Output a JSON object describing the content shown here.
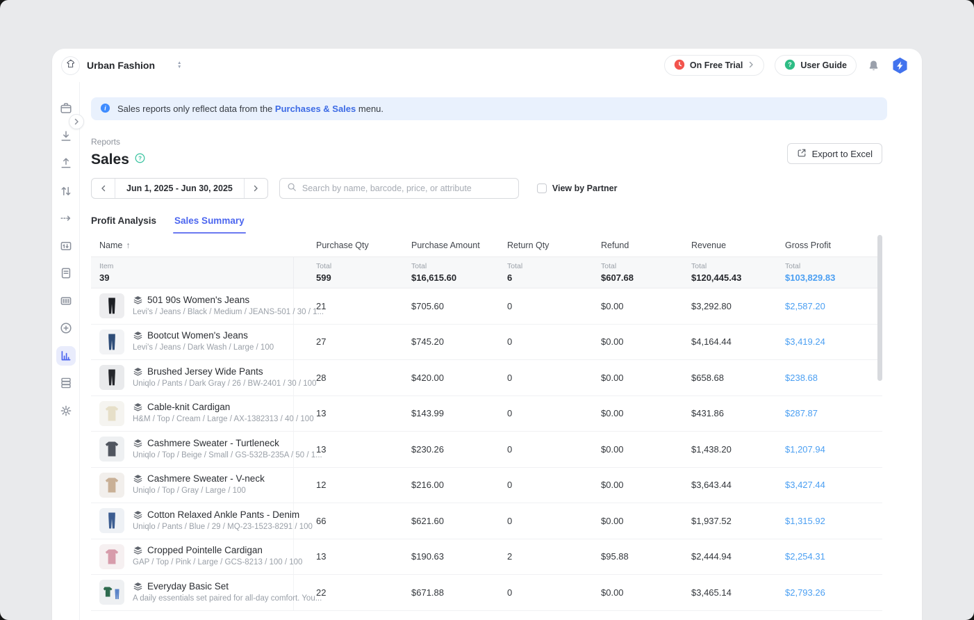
{
  "app": {
    "workspace": "Urban Fashion",
    "trial_label": "On Free Trial",
    "user_guide_label": "User Guide"
  },
  "sidebar": {
    "items": [
      {
        "icon": "box-icon"
      },
      {
        "icon": "stock-in-icon"
      },
      {
        "icon": "stock-out-icon"
      },
      {
        "icon": "adjust-icon"
      },
      {
        "icon": "move-icon"
      },
      {
        "icon": "count-icon"
      },
      {
        "icon": "ledger-icon"
      },
      {
        "icon": "barcode-icon"
      },
      {
        "icon": "add-circle-icon"
      },
      {
        "icon": "analytics-icon",
        "active": true
      },
      {
        "icon": "database-icon"
      },
      {
        "icon": "settings-gear-icon"
      }
    ]
  },
  "banner": {
    "text": "Sales reports only reflect data from the",
    "link": "Purchases & Sales",
    "suffix": "menu."
  },
  "page": {
    "breadcrumb": "Reports",
    "title": "Sales",
    "export_button": "Export to Excel"
  },
  "filters": {
    "date_range": "Jun 1, 2025 - Jun 30, 2025",
    "search_placeholder": "Search by name, barcode, price, or attribute",
    "view_by_partner": "View by Partner"
  },
  "tabs": [
    {
      "label": "Profit Analysis",
      "active": false
    },
    {
      "label": "Sales Summary",
      "active": true
    }
  ],
  "table": {
    "columns": [
      "Name",
      "Purchase Qty",
      "Purchase Amount",
      "Return Qty",
      "Refund",
      "Revenue",
      "Gross Profit"
    ],
    "summary": {
      "item_label": "Item",
      "item_value": "39",
      "total_label": "Total",
      "totals": [
        "599",
        "$16,615.60",
        "6",
        "$607.68",
        "$120,445.43",
        "$103,829.83"
      ]
    },
    "rows": [
      {
        "name": "501 90s Women's Jeans",
        "attrs": "Levi's / Jeans / Black / Medium / JEANS-501 / 30 / 1...",
        "bundle": false,
        "purchase_qty": "21",
        "purchase_amount": "$705.60",
        "return_qty": "0",
        "refund": "$0.00",
        "revenue": "$3,292.80",
        "gross_profit": "$2,587.20",
        "thumb": {
          "type": "pants",
          "color": "#1d1f24",
          "bg": "#ededef"
        }
      },
      {
        "name": "Bootcut Women's Jeans",
        "attrs": "Levi's / Jeans / Dark Wash / Large / 100",
        "bundle": false,
        "purchase_qty": "27",
        "purchase_amount": "$745.20",
        "return_qty": "0",
        "refund": "$0.00",
        "revenue": "$4,164.44",
        "gross_profit": "$3,419.24",
        "thumb": {
          "type": "pants",
          "color": "#2f4d78",
          "bg": "#f2f3f5"
        }
      },
      {
        "name": "Brushed Jersey Wide Pants",
        "attrs": "Uniqlo / Pants / Dark Gray / 26 / BW-2401 / 30 / 100",
        "bundle": false,
        "purchase_qty": "28",
        "purchase_amount": "$420.00",
        "return_qty": "0",
        "refund": "$0.00",
        "revenue": "$658.68",
        "gross_profit": "$238.68",
        "thumb": {
          "type": "pants",
          "color": "#25272c",
          "bg": "#e9eaec"
        }
      },
      {
        "name": "Cable-knit Cardigan",
        "attrs": "H&M / Top / Cream / Large / AX-1382313 / 40 / 100",
        "bundle": false,
        "purchase_qty": "13",
        "purchase_amount": "$143.99",
        "return_qty": "0",
        "refund": "$0.00",
        "revenue": "$431.86",
        "gross_profit": "$287.87",
        "thumb": {
          "type": "top",
          "color": "#e6dfc8",
          "bg": "#f5f4f0"
        }
      },
      {
        "name": "Cashmere Sweater - Turtleneck",
        "attrs": "Uniqlo / Top / Beige / Small / GS-532B-235A / 50 / 1...",
        "bundle": false,
        "purchase_qty": "13",
        "purchase_amount": "$230.26",
        "return_qty": "0",
        "refund": "$0.00",
        "revenue": "$1,438.20",
        "gross_profit": "$1,207.94",
        "thumb": {
          "type": "top",
          "color": "#515660",
          "bg": "#eef0f2"
        }
      },
      {
        "name": "Cashmere Sweater - V-neck",
        "attrs": "Uniqlo / Top / Gray / Large / 100",
        "bundle": false,
        "purchase_qty": "12",
        "purchase_amount": "$216.00",
        "return_qty": "0",
        "refund": "$0.00",
        "revenue": "$3,643.44",
        "gross_profit": "$3,427.44",
        "thumb": {
          "type": "top",
          "color": "#c9b096",
          "bg": "#f2efec"
        }
      },
      {
        "name": "Cotton Relaxed Ankle Pants - Denim",
        "attrs": "Uniqlo / Pants / Blue / 29 / MQ-23-1523-8291 / 100",
        "bundle": false,
        "purchase_qty": "66",
        "purchase_amount": "$621.60",
        "return_qty": "0",
        "refund": "$0.00",
        "revenue": "$1,937.52",
        "gross_profit": "$1,315.92",
        "thumb": {
          "type": "pants",
          "color": "#3c5d91",
          "bg": "#eef1f5"
        }
      },
      {
        "name": "Cropped Pointelle Cardigan",
        "attrs": "GAP / Top / Pink / Large / GCS-8213 / 100 / 100",
        "bundle": false,
        "purchase_qty": "13",
        "purchase_amount": "$190.63",
        "return_qty": "2",
        "refund": "$95.88",
        "revenue": "$2,444.94",
        "gross_profit": "$2,254.31",
        "thumb": {
          "type": "top",
          "color": "#d79cab",
          "bg": "#f6f0f1"
        }
      },
      {
        "name": "Everyday Basic Set",
        "attrs": "A daily essentials set paired for all-day comfort. You...",
        "bundle": true,
        "purchase_qty": "22",
        "purchase_amount": "$671.88",
        "return_qty": "0",
        "refund": "$0.00",
        "revenue": "$3,465.14",
        "gross_profit": "$2,793.26",
        "thumb": {
          "type": "bundle",
          "color": "#2f6b4f",
          "color2": "#5b84c8",
          "bg": "#eef0f2"
        }
      }
    ]
  },
  "colors": {
    "accent_blue": "#4c66ef",
    "profit_blue": "#4b9ff2",
    "link_blue": "#3d6be5",
    "banner_bg": "#e9f1fd",
    "trial_red": "#f2544d",
    "guide_green": "#2ebd85",
    "brand_blue": "#4273ee",
    "help_teal": "#35c29e"
  }
}
